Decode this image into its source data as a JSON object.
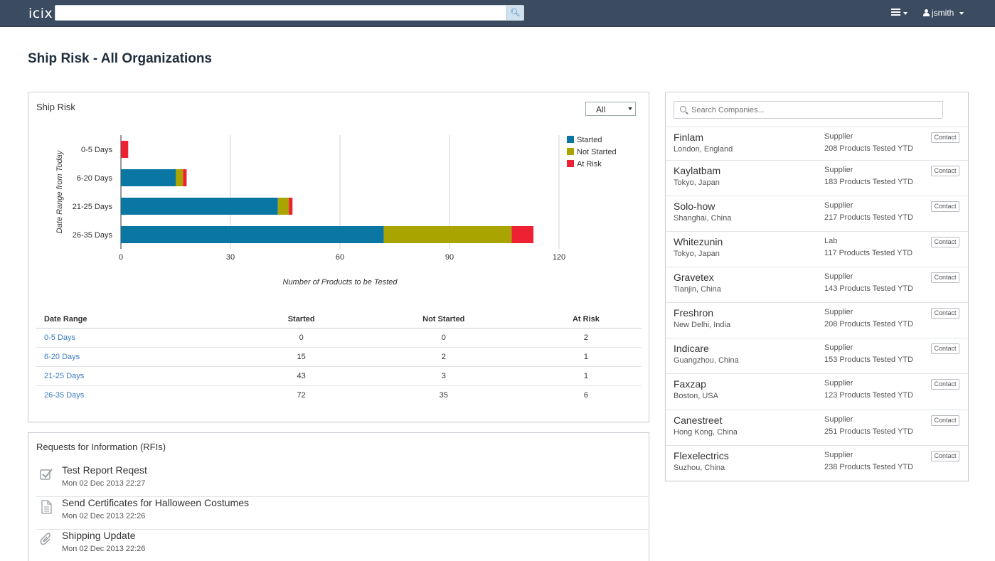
{
  "app": {
    "brand": "icix",
    "user": "jsmith"
  },
  "page": {
    "title": "Ship Risk - All Organizations"
  },
  "ship_risk": {
    "title": "Ship Risk",
    "filter": "All",
    "table": {
      "headers": [
        "Date Range",
        "Started",
        "Not Started",
        "At Risk"
      ],
      "rows": [
        [
          "0-5 Days",
          "0",
          "0",
          "2"
        ],
        [
          "6-20 Days",
          "15",
          "2",
          "1"
        ],
        [
          "21-25 Days",
          "43",
          "3",
          "1"
        ],
        [
          "26-35 Days",
          "72",
          "35",
          "6"
        ]
      ]
    }
  },
  "chart_data": {
    "type": "bar",
    "orientation": "horizontal",
    "stacked": true,
    "categories": [
      "0-5 Days",
      "6-20 Days",
      "21-25 Days",
      "26-35 Days"
    ],
    "series": [
      {
        "name": "Started",
        "values": [
          0,
          15,
          43,
          72
        ],
        "color": "#0a76a3"
      },
      {
        "name": "Not Started",
        "values": [
          0,
          2,
          3,
          35
        ],
        "color": "#aaa400"
      },
      {
        "name": "At Risk",
        "values": [
          2,
          1,
          1,
          6
        ],
        "color": "#ee2132"
      }
    ],
    "xlabel": "Number of Products to be Tested",
    "ylabel": "Date Range from Today",
    "xlim": [
      0,
      120
    ],
    "xticks": [
      "0",
      "30",
      "60",
      "90",
      "120"
    ],
    "grid": true,
    "legend": "right"
  },
  "rfis": {
    "title": "Requests for Information (RFIs)",
    "items": [
      {
        "title": "Test Report Reqest",
        "date": "Mon 02 Dec 2013 22:27",
        "icon": "checkbox-icon"
      },
      {
        "title": "Send Certificates for Halloween Costumes",
        "date": "Mon 02 Dec 2013 22:26",
        "icon": "document-icon"
      },
      {
        "title": "Shipping Update",
        "date": "Mon 02 Dec 2013 22:26",
        "icon": "paperclip-icon"
      }
    ]
  },
  "companies": {
    "search_placeholder": "Search Companies...",
    "contact_label": "Contact",
    "items": [
      {
        "name": "Finlam",
        "location": "London, England",
        "type": "Supplier",
        "tested": "208 Products Tested YTD"
      },
      {
        "name": "Kaylatbam",
        "location": "Tokyo, Japan",
        "type": "Supplier",
        "tested": "183 Products Tested YTD"
      },
      {
        "name": "Solo-how",
        "location": "Shanghai, China",
        "type": "Supplier",
        "tested": "217 Products Tested YTD"
      },
      {
        "name": "Whitezunin",
        "location": "Tokyo, Japan",
        "type": "Lab",
        "tested": "117 Products Tested YTD"
      },
      {
        "name": "Gravetex",
        "location": "Tianjin, China",
        "type": "Supplier",
        "tested": "143 Products Tested YTD"
      },
      {
        "name": "Freshron",
        "location": "New Delhi, India",
        "type": "Supplier",
        "tested": "208 Products Tested YTD"
      },
      {
        "name": "Indicare",
        "location": "Guangzhou, China",
        "type": "Supplier",
        "tested": "153 Products Tested YTD"
      },
      {
        "name": "Faxzap",
        "location": "Boston, USA",
        "type": "Supplier",
        "tested": "123 Products Tested YTD"
      },
      {
        "name": "Canestreet",
        "location": "Hong Kong, China",
        "type": "Supplier",
        "tested": "251 Products Tested YTD"
      },
      {
        "name": "Flexelectrics",
        "location": "Suzhou, China",
        "type": "Supplier",
        "tested": "238 Products Tested YTD"
      }
    ]
  }
}
